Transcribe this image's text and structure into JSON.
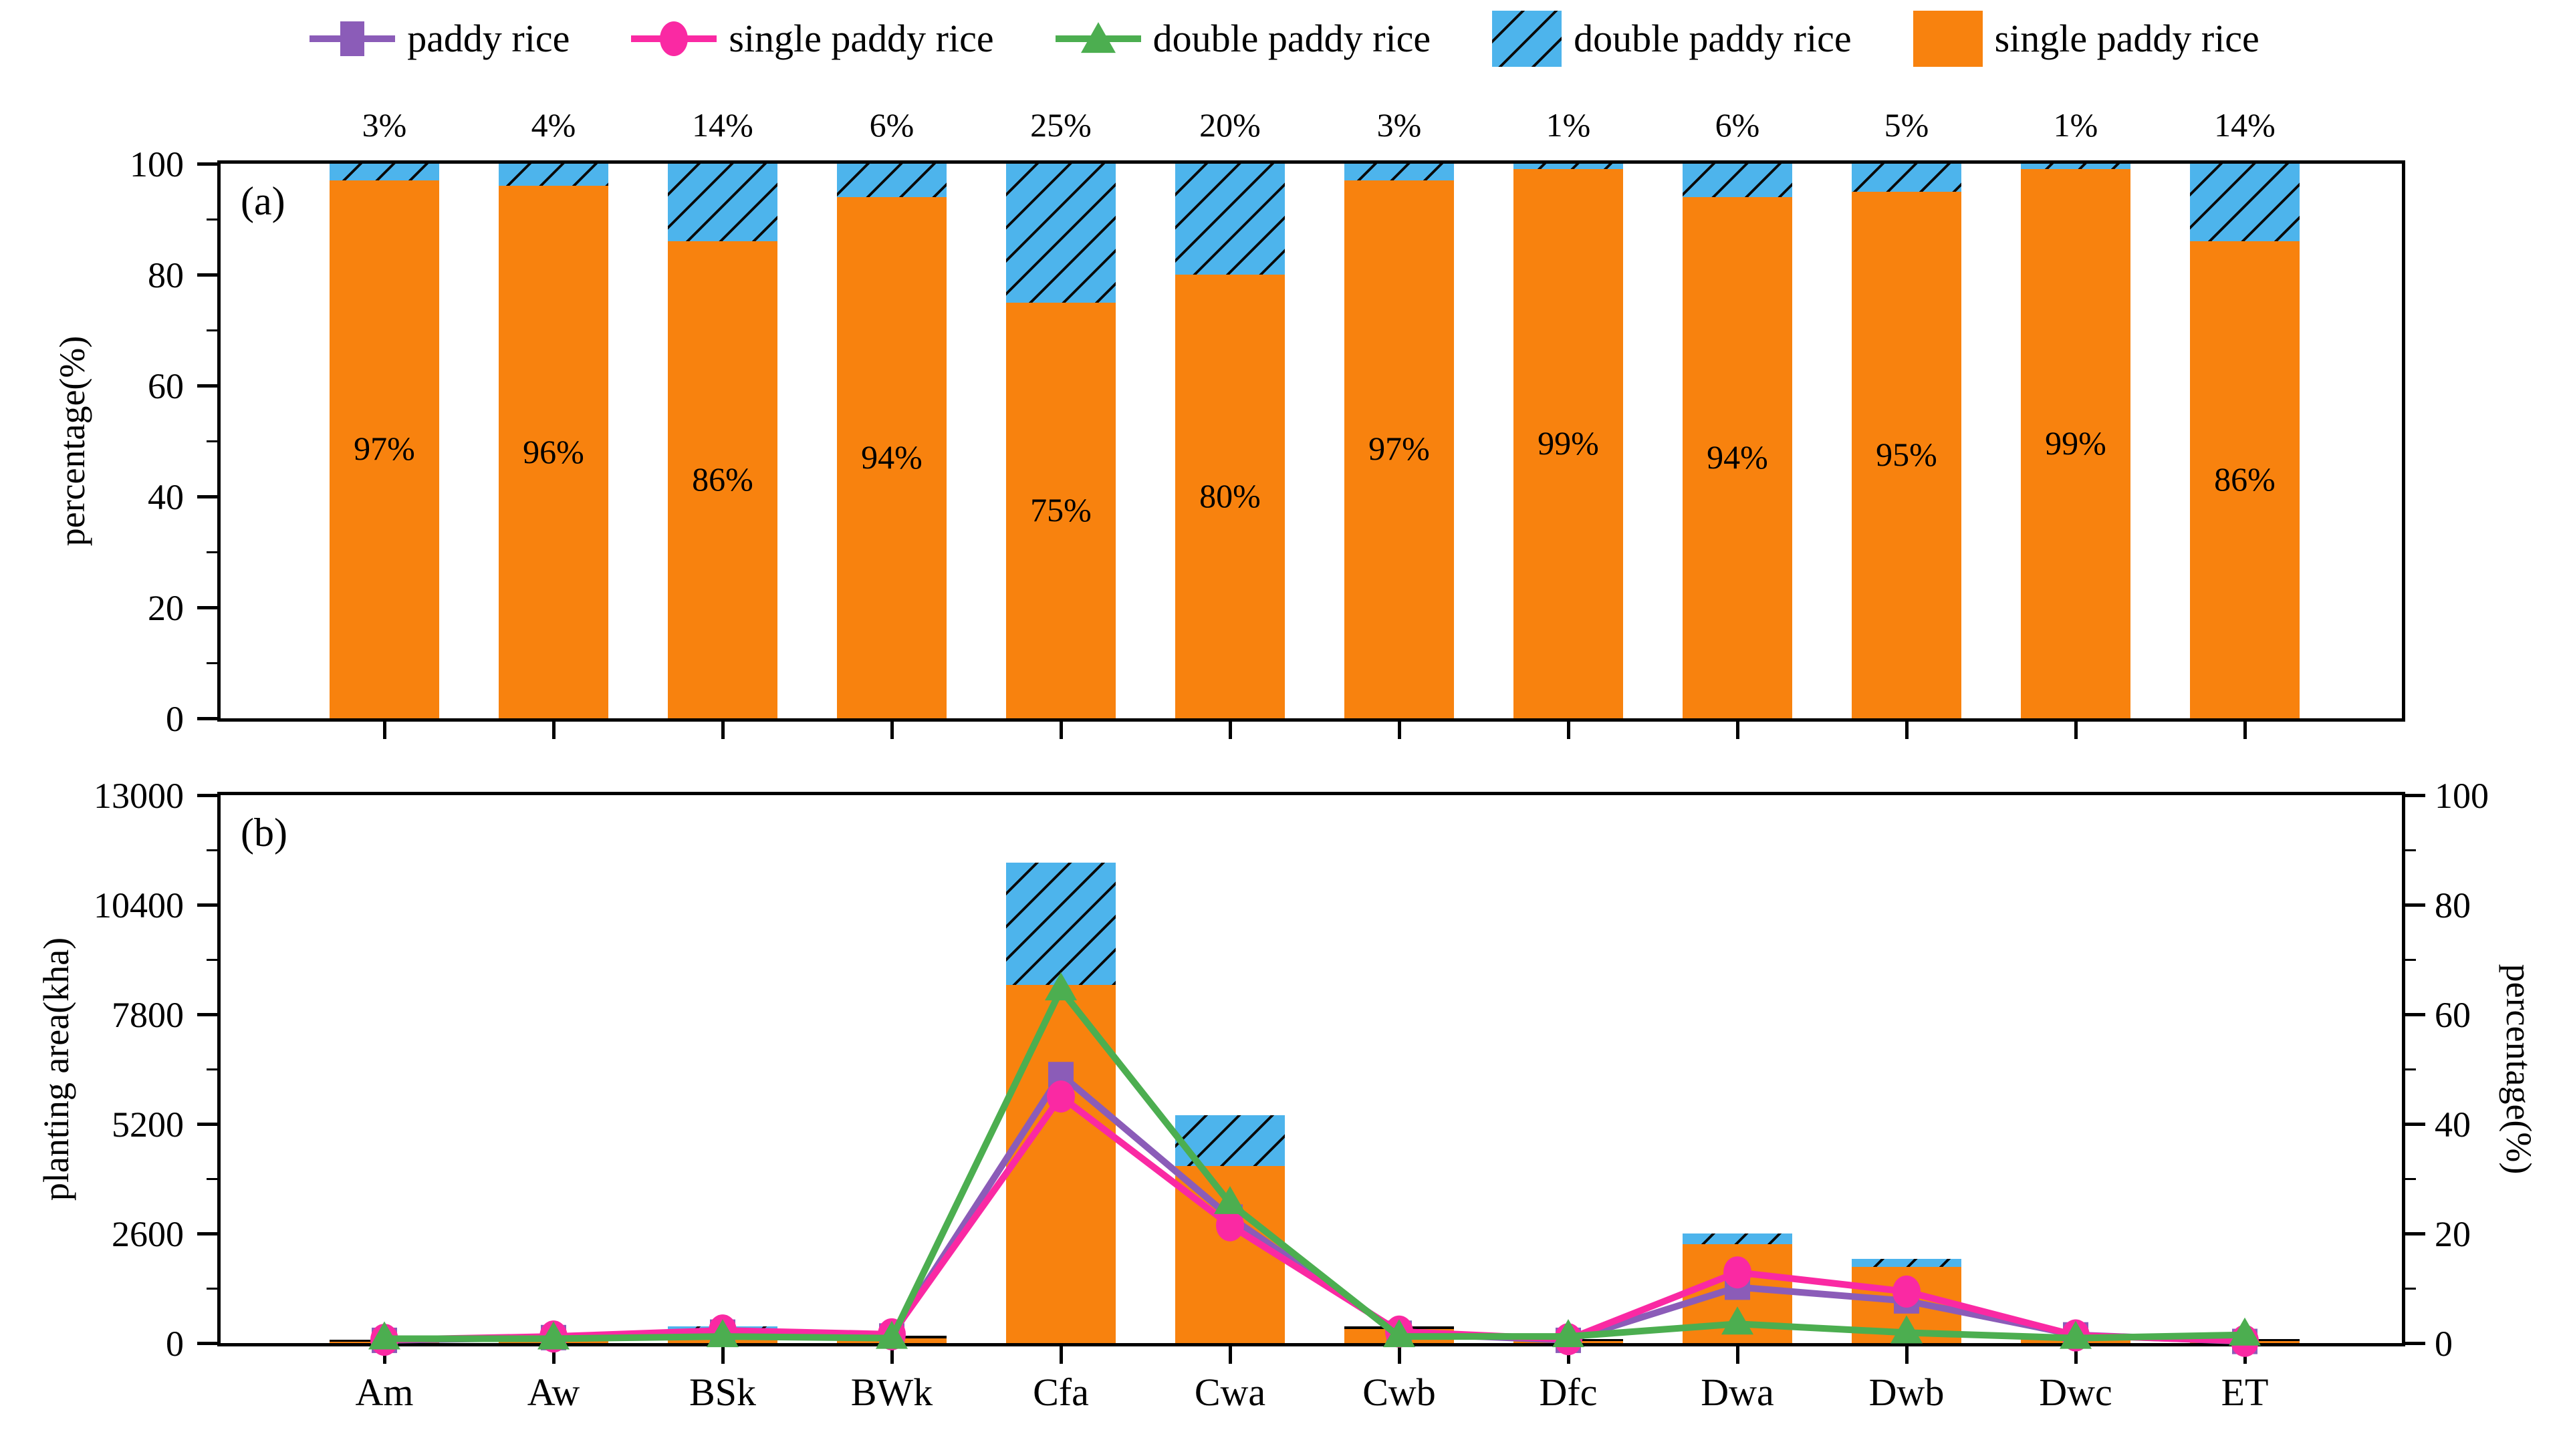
{
  "colors": {
    "orange": "#F8820E",
    "blue": "#4DB4EC",
    "purple": "#8B5CB8",
    "pink": "#FA29A3",
    "green": "#4CAE50",
    "axis": "#000000"
  },
  "legend": {
    "items": [
      {
        "label": "paddy rice",
        "marker": "line-square",
        "color": "purple"
      },
      {
        "label": "single paddy rice",
        "marker": "line-circle",
        "color": "pink"
      },
      {
        "label": "double paddy rice",
        "marker": "line-triangle",
        "color": "green"
      },
      {
        "label": "double paddy rice",
        "marker": "patch-hatched",
        "color": "blue"
      },
      {
        "label": "single paddy rice",
        "marker": "patch",
        "color": "orange"
      }
    ]
  },
  "categories": [
    "Am",
    "Aw",
    "BSk",
    "BWk",
    "Cfa",
    "Cwa",
    "Cwb",
    "Dfc",
    "Dwa",
    "Dwb",
    "Dwc",
    "ET"
  ],
  "chart_data": [
    {
      "type": "bar",
      "panel": "a",
      "panel_label": "(a)",
      "stacked": true,
      "categories": [
        "Am",
        "Aw",
        "BSk",
        "BWk",
        "Cfa",
        "Cwa",
        "Cwb",
        "Dfc",
        "Dwa",
        "Dwb",
        "Dwc",
        "ET"
      ],
      "series": [
        {
          "name": "single paddy rice",
          "color": "orange",
          "values": [
            97,
            96,
            86,
            94,
            75,
            80,
            97,
            99,
            94,
            95,
            99,
            86
          ]
        },
        {
          "name": "double paddy rice",
          "color": "blue",
          "hatched": true,
          "values": [
            3,
            4,
            14,
            6,
            25,
            20,
            3,
            1,
            6,
            5,
            1,
            14
          ]
        }
      ],
      "bar_labels": [
        "97%",
        "96%",
        "86%",
        "94%",
        "75%",
        "80%",
        "97%",
        "99%",
        "94%",
        "95%",
        "99%",
        "86%"
      ],
      "top_labels": [
        "3%",
        "4%",
        "14%",
        "6%",
        "25%",
        "20%",
        "3%",
        "1%",
        "6%",
        "5%",
        "1%",
        "14%"
      ],
      "ylabel": "percentage(%)",
      "ylim": [
        0,
        100
      ],
      "yticks": [
        0,
        20,
        40,
        60,
        80,
        100
      ],
      "grid": false
    },
    {
      "type": "bar+line",
      "panel": "b",
      "panel_label": "(b)",
      "categories": [
        "Am",
        "Aw",
        "BSk",
        "BWk",
        "Cfa",
        "Cwa",
        "Cwb",
        "Dfc",
        "Dwa",
        "Dwb",
        "Dwc",
        "ET"
      ],
      "bar_series": [
        {
          "name": "single paddy rice",
          "color": "orange",
          "axis": "left",
          "values": [
            38,
            105,
            230,
            115,
            8500,
            4200,
            340,
            50,
            2350,
            1800,
            150,
            45
          ]
        },
        {
          "name": "double paddy rice",
          "color": "blue",
          "hatched": true,
          "axis": "left",
          "values": [
            8,
            15,
            160,
            55,
            2900,
            1200,
            50,
            10,
            250,
            200,
            40,
            12
          ]
        }
      ],
      "line_series": [
        {
          "name": "paddy rice",
          "color": "purple",
          "marker": "square",
          "axis": "right",
          "values": [
            0.5,
            1.0,
            2.0,
            1.3,
            49,
            23,
            1.8,
            0.5,
            10.2,
            7.7,
            1.5,
            0.3
          ]
        },
        {
          "name": "single paddy rice",
          "color": "pink",
          "marker": "circle",
          "axis": "right",
          "values": [
            0.6,
            1.2,
            2.3,
            1.6,
            45,
            21.5,
            2.1,
            0.7,
            12.9,
            9.4,
            1.4,
            0.4
          ]
        },
        {
          "name": "double paddy rice",
          "color": "green",
          "marker": "triangle",
          "axis": "right",
          "values": [
            0.8,
            0.8,
            1.2,
            0.9,
            64.5,
            25.5,
            1.2,
            1.2,
            3.5,
            1.9,
            0.9,
            1.5
          ]
        }
      ],
      "ylabel_left": "planting area(kha)",
      "ylim_left": [
        0,
        13000
      ],
      "yticks_left": [
        0,
        2600,
        5200,
        7800,
        10400,
        13000
      ],
      "ylabel_right": "percentage(%)",
      "ylim_right": [
        0,
        100
      ],
      "yticks_right": [
        0,
        20,
        40,
        60,
        80,
        100
      ],
      "legend_position": "top",
      "grid": false
    }
  ]
}
